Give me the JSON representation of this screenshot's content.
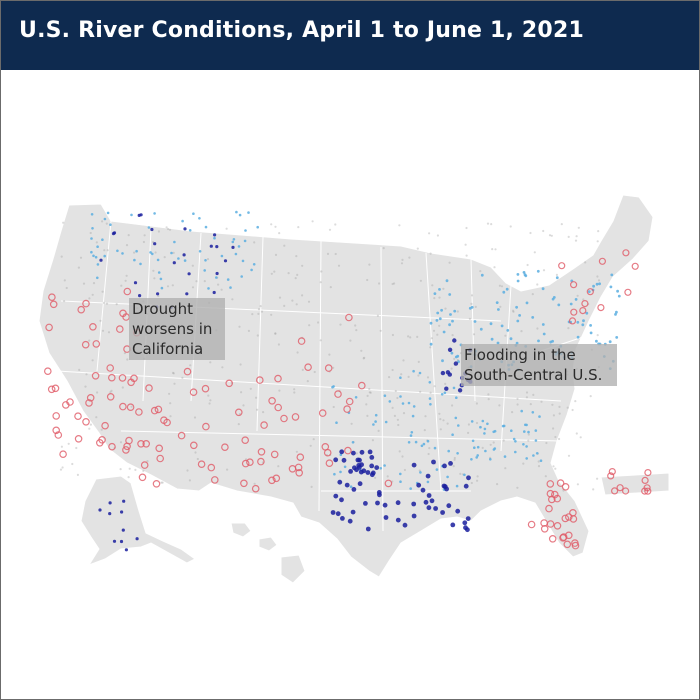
{
  "header": {
    "title": "U.S. River Conditions, April 1 to June 1, 2021"
  },
  "map": {
    "region": "United States",
    "land_color": "#e3e3e3",
    "border_color": "#ffffff",
    "point_categories": [
      {
        "id": "drought",
        "color": "#e05a66",
        "symbol": "open-circle"
      },
      {
        "id": "normal",
        "color": "#9a9a9a",
        "symbol": "dot"
      },
      {
        "id": "high",
        "color": "#5aaee0",
        "symbol": "dot"
      },
      {
        "id": "flood",
        "color": "#1a1f9e",
        "symbol": "dot"
      }
    ],
    "annotations": [
      {
        "id": "drought",
        "lines": [
          "Drought",
          "worsens in",
          "California"
        ]
      },
      {
        "id": "flood",
        "lines": [
          "Flooding in the",
          "South-Central U.S."
        ]
      }
    ]
  }
}
